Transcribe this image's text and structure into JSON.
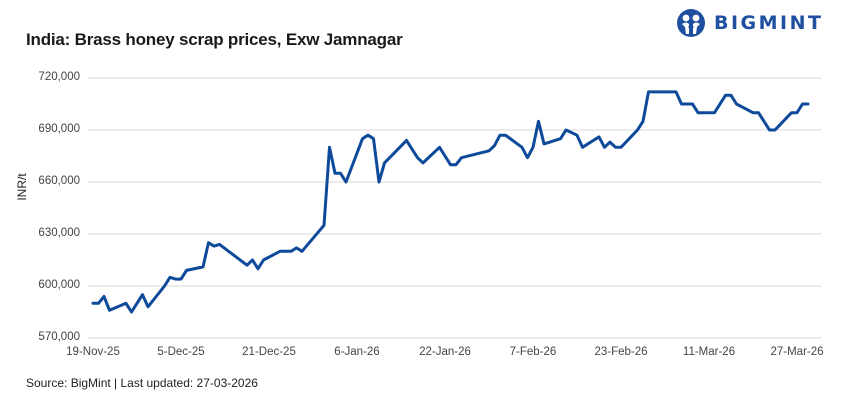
{
  "header": {
    "title": "India: Brass honey scrap prices, Exw Jamnagar",
    "logo_text": "BIGMINT",
    "logo_icon": "bigmint-people-icon"
  },
  "footer": {
    "source": "Source: BigMint | Last updated: 27-03-2026"
  },
  "colors": {
    "line": "#0d4a9a",
    "grid": "#d9d9d9",
    "brand": "#1e4fa0"
  },
  "chart_data": {
    "type": "line",
    "title": "India: Brass honey scrap prices, Exw Jamnagar",
    "xlabel": "",
    "ylabel": "INR/t",
    "ylim": [
      570000,
      720000
    ],
    "yticks": [
      "720,000",
      "690,000",
      "660,000",
      "630,000",
      "600,000",
      "570,000"
    ],
    "xticks": [
      "19-Nov-25",
      "5-Dec-25",
      "21-Dec-25",
      "6-Jan-26",
      "22-Jan-26",
      "7-Feb-26",
      "23-Feb-26",
      "11-Mar-26",
      "27-Mar-26"
    ],
    "grid": true,
    "legend": "none",
    "series": [
      {
        "name": "Brass honey scrap, Exw Jamnagar (INR/t)",
        "points": [
          [
            "19-Nov-25",
            590000
          ],
          [
            "20-Nov-25",
            590000
          ],
          [
            "21-Nov-25",
            594000
          ],
          [
            "22-Nov-25",
            586000
          ],
          [
            "25-Nov-25",
            590000
          ],
          [
            "26-Nov-25",
            585000
          ],
          [
            "28-Nov-25",
            595000
          ],
          [
            "29-Nov-25",
            588000
          ],
          [
            "2-Dec-25",
            600000
          ],
          [
            "3-Dec-25",
            605000
          ],
          [
            "4-Dec-25",
            604000
          ],
          [
            "5-Dec-25",
            604000
          ],
          [
            "6-Dec-25",
            609000
          ],
          [
            "9-Dec-25",
            611000
          ],
          [
            "10-Dec-25",
            625000
          ],
          [
            "11-Dec-25",
            623000
          ],
          [
            "12-Dec-25",
            624000
          ],
          [
            "17-Dec-25",
            612000
          ],
          [
            "18-Dec-25",
            615000
          ],
          [
            "19-Dec-25",
            610000
          ],
          [
            "20-Dec-25",
            615000
          ],
          [
            "23-Dec-25",
            620000
          ],
          [
            "25-Dec-25",
            620000
          ],
          [
            "26-Dec-25",
            622000
          ],
          [
            "27-Dec-25",
            620000
          ],
          [
            "31-Dec-25",
            635000
          ],
          [
            "1-Jan-26",
            680000
          ],
          [
            "2-Jan-26",
            665000
          ],
          [
            "3-Jan-26",
            665000
          ],
          [
            "4-Jan-26",
            660000
          ],
          [
            "7-Jan-26",
            685000
          ],
          [
            "8-Jan-26",
            687000
          ],
          [
            "9-Jan-26",
            685000
          ],
          [
            "10-Jan-26",
            660000
          ],
          [
            "11-Jan-26",
            671000
          ],
          [
            "15-Jan-26",
            684000
          ],
          [
            "17-Jan-26",
            674000
          ],
          [
            "18-Jan-26",
            671000
          ],
          [
            "21-Jan-26",
            680000
          ],
          [
            "23-Jan-26",
            670000
          ],
          [
            "24-Jan-26",
            670000
          ],
          [
            "25-Jan-26",
            674000
          ],
          [
            "30-Jan-26",
            678000
          ],
          [
            "31-Jan-26",
            681000
          ],
          [
            "1-Feb-26",
            687000
          ],
          [
            "2-Feb-26",
            687000
          ],
          [
            "5-Feb-26",
            680000
          ],
          [
            "6-Feb-26",
            674000
          ],
          [
            "7-Feb-26",
            680000
          ],
          [
            "8-Feb-26",
            695000
          ],
          [
            "9-Feb-26",
            682000
          ],
          [
            "12-Feb-26",
            685000
          ],
          [
            "13-Feb-26",
            690000
          ],
          [
            "15-Feb-26",
            687000
          ],
          [
            "16-Feb-26",
            680000
          ],
          [
            "19-Feb-26",
            686000
          ],
          [
            "20-Feb-26",
            680000
          ],
          [
            "21-Feb-26",
            683000
          ],
          [
            "22-Feb-26",
            680000
          ],
          [
            "23-Feb-26",
            680000
          ],
          [
            "26-Feb-26",
            690000
          ],
          [
            "27-Feb-26",
            695000
          ],
          [
            "28-Feb-26",
            712000
          ],
          [
            "5-Mar-26",
            712000
          ],
          [
            "6-Mar-26",
            705000
          ],
          [
            "8-Mar-26",
            705000
          ],
          [
            "9-Mar-26",
            700000
          ],
          [
            "12-Mar-26",
            700000
          ],
          [
            "14-Mar-26",
            710000
          ],
          [
            "15-Mar-26",
            710000
          ],
          [
            "16-Mar-26",
            705000
          ],
          [
            "19-Mar-26",
            700000
          ],
          [
            "20-Mar-26",
            700000
          ],
          [
            "22-Mar-26",
            690000
          ],
          [
            "23-Mar-26",
            690000
          ],
          [
            "26-Mar-26",
            700000
          ],
          [
            "27-Mar-26",
            700000
          ],
          [
            "28-Mar-26",
            705000
          ],
          [
            "29-Mar-26",
            705000
          ]
        ]
      }
    ]
  }
}
